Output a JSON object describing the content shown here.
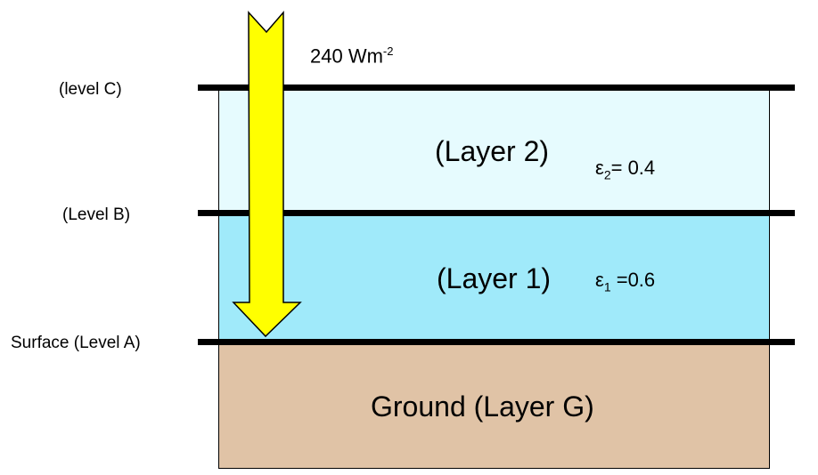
{
  "flux": {
    "value": "240 Wm",
    "exponent": "-2"
  },
  "levels": {
    "c": "(level  C)",
    "b": "(Level B)",
    "a": "Surface (Level A)"
  },
  "layers": {
    "layer2": {
      "name": "(Layer 2)",
      "eps_symbol": "ε",
      "eps_sub": "2",
      "eps_value": "= 0.4",
      "color": "#e6fbfe"
    },
    "layer1": {
      "name": "(Layer 1)",
      "eps_symbol": "ε",
      "eps_sub": "1",
      "eps_value": " =0.6",
      "color": "#a0eafa"
    },
    "ground": {
      "name": "Ground (Layer G)",
      "color": "#e0c3a6"
    }
  },
  "arrow": {
    "fill": "#ffff00",
    "stroke": "#000000"
  }
}
